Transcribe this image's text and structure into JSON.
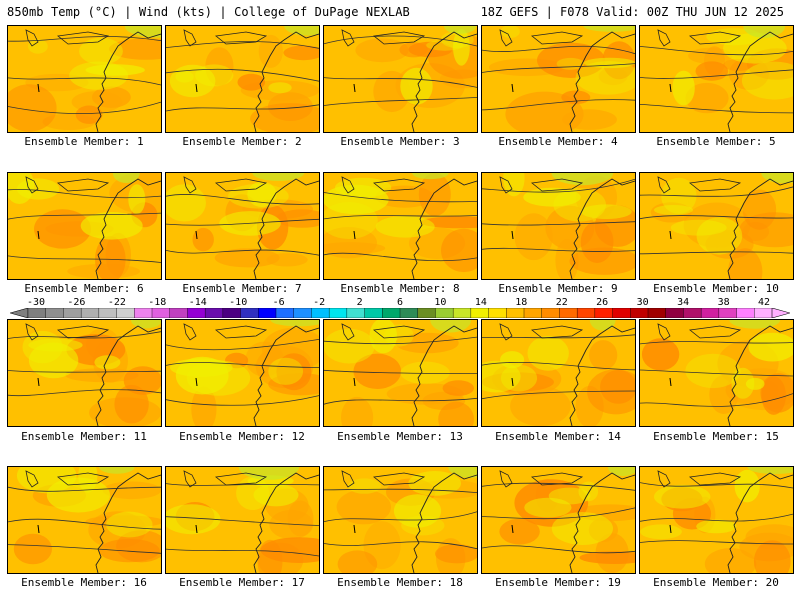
{
  "header": {
    "left_title": "850mb Temp (°C) | Wind (kts) | College of DuPage NEXLAB",
    "right_title": "18Z GEFS | F078 Valid: 00Z THU JUN 12 2025"
  },
  "colorbar": {
    "labels": [
      "-30",
      "-26",
      "-22",
      "-18",
      "-14",
      "-10",
      "-6",
      "-2",
      "2",
      "6",
      "10",
      "14",
      "18",
      "22",
      "26",
      "30",
      "34",
      "38",
      "42"
    ],
    "colors": [
      "#7f7f7f",
      "#8f8f8f",
      "#9f9f9f",
      "#afafaf",
      "#bfbfbf",
      "#cfcfcf",
      "#ee82ee",
      "#e060e0",
      "#c040c0",
      "#9400d3",
      "#6a0dad",
      "#4b0082",
      "#3030c0",
      "#0000ff",
      "#1e6fff",
      "#1e90ff",
      "#00bfff",
      "#00e5ee",
      "#40e0d0",
      "#00c9a7",
      "#00a86b",
      "#2e8b57",
      "#6b8e23",
      "#9acd32",
      "#c8e628",
      "#f0f000",
      "#ffe000",
      "#ffc000",
      "#ffa500",
      "#ff8c00",
      "#ff6a00",
      "#ff4500",
      "#ff2000",
      "#e00000",
      "#c00000",
      "#a00000",
      "#900040",
      "#b0106a",
      "#d020a0",
      "#e040c0",
      "#ff80ff",
      "#ffb0ff"
    ]
  },
  "members": [
    {
      "label": "Ensemble Member: 1"
    },
    {
      "label": "Ensemble Member: 2"
    },
    {
      "label": "Ensemble Member: 3"
    },
    {
      "label": "Ensemble Member: 4"
    },
    {
      "label": "Ensemble Member: 5"
    },
    {
      "label": "Ensemble Member: 6"
    },
    {
      "label": "Ensemble Member: 7"
    },
    {
      "label": "Ensemble Member: 8"
    },
    {
      "label": "Ensemble Member: 9"
    },
    {
      "label": "Ensemble Member: 10"
    },
    {
      "label": "Ensemble Member: 11"
    },
    {
      "label": "Ensemble Member: 12"
    },
    {
      "label": "Ensemble Member: 13"
    },
    {
      "label": "Ensemble Member: 14"
    },
    {
      "label": "Ensemble Member: 15"
    },
    {
      "label": "Ensemble Member: 16"
    },
    {
      "label": "Ensemble Member: 17"
    },
    {
      "label": "Ensemble Member: 18"
    },
    {
      "label": "Ensemble Member: 19"
    },
    {
      "label": "Ensemble Member: 20"
    }
  ],
  "palette": {
    "base": "#ffc000",
    "warm": "#ffa500",
    "hot": "#ff8c00",
    "cool": "#f0f000",
    "green": "#c8e628",
    "contour": "#333333"
  }
}
